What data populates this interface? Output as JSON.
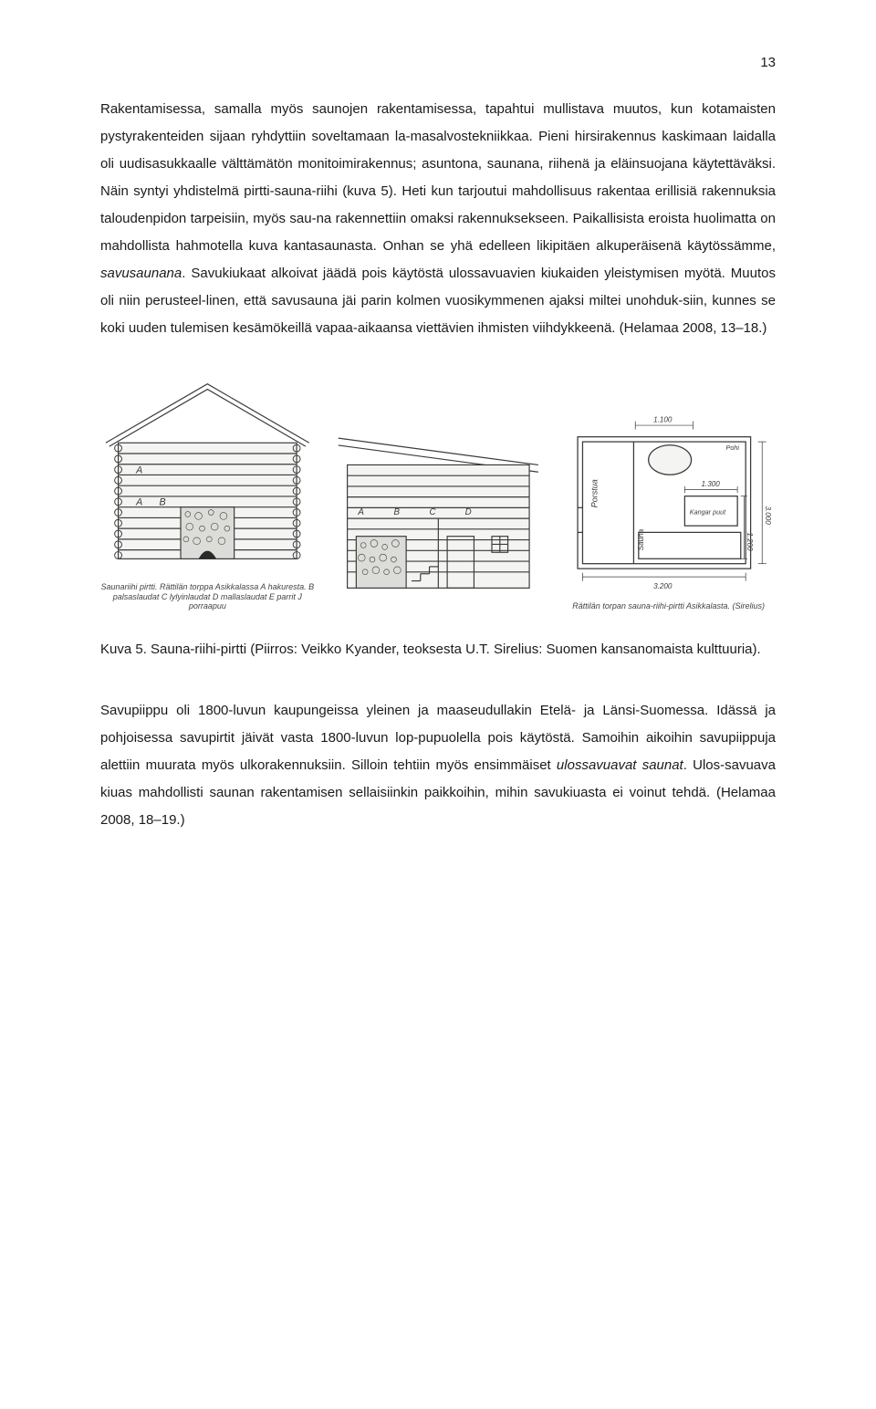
{
  "page_number": "13",
  "paragraph_1": "Rakentamisessa, samalla myös saunojen rakentamisessa, tapahtui mullistava muutos, kun kotamaisten pystyrakenteiden sijaan ryhdyttiin soveltamaan la-masalvostekniikkaa. Pieni hirsirakennus kaskimaan laidalla oli uudisasukkaalle välttämätön monitoimirakennus; asuntona, saunana, riihenä ja eläinsuojana käytettäväksi. Näin syntyi yhdistelmä pirtti-sauna-riihi (kuva 5). Heti kun tarjoutui mahdollisuus rakentaa erillisiä rakennuksia taloudenpidon tarpeisiin, myös sau-na rakennettiin omaksi rakennuksekseen. Paikallisista eroista huolimatta on mahdollista hahmotella kuva kantasaunasta. Onhan se yhä edelleen likipitäen alkuperäisenä käytössämme, savusaunana. Savukiukaat alkoivat jäädä pois käytöstä ulossavuavien kiukaiden yleistymisen myötä. Muutos oli niin perusteel-linen, että savusauna jäi parin kolmen vuosikymmenen ajaksi miltei unohduk-siin, kunnes se koki uuden tulemisen kesämökeillä vapaa-aikaansa viettävien ihmisten viihdykkeenä. (Helamaa 2008, 13–18.)",
  "figure": {
    "panels": [
      {
        "caption": "Saunariihi pirtti. Rättilän torppa Asikkalassa\nA hakuresta. B palsaslaudat C lylyinlaudat D mallaslaudat E parrit\nJ porraapuu"
      },
      {
        "caption": ""
      },
      {
        "caption": "Rättilän torpan sauna-riihi-pirtti Asikkalasta. (Sirelius)"
      }
    ],
    "dims": {
      "d1": "1.100",
      "d2": "3.000",
      "d3": "1.300",
      "d4": "1.200",
      "d5": "3.200"
    },
    "labels": {
      "A": "A",
      "B": "B",
      "C": "C",
      "D": "D",
      "porstua": "Porstua",
      "sauna": "Sauna",
      "kangarpuut": "Kangar puut",
      "pohi": "Pohi"
    }
  },
  "caption_text": "Kuva 5. Sauna-riihi-pirtti (Piirros: Veikko Kyander, teoksesta U.T. Sirelius: Suomen kansanomaista kulttuuria).",
  "paragraph_2": "Savupiippu oli 1800-luvun kaupungeissa yleinen ja maaseudullakin Etelä- ja Länsi-Suomessa. Idässä ja pohjoisessa savupirtit jäivät vasta 1800-luvun lop-pupuolella pois käytöstä. Samoihin aikoihin savupiippuja alettiin muurata myös ulkorakennuksiin. Silloin tehtiin myös ensimmäiset ulossavuavat saunat. Ulos-savuava kiuas mahdollisti saunan rakentamisen sellaisiinkin paikkoihin, mihin savukiuasta ei voinut tehdä. (Helamaa 2008, 18–19.)",
  "colors": {
    "text": "#1a1a1a",
    "bg": "#ffffff",
    "figure_stroke": "#3a3a3a",
    "figure_fill": "#f4f4f2",
    "stone_fill": "#dcdcd8"
  }
}
